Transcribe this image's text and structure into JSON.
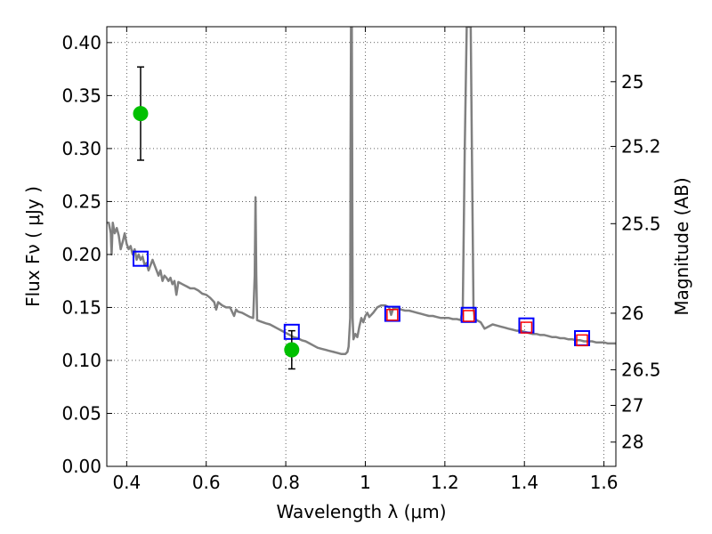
{
  "chart_data": {
    "type": "scatter",
    "xlabel": "Wavelength  λ (μm)",
    "ylabel": "Flux  Fν ( μJy )",
    "y2label": "Magnitude (AB)",
    "xlim": [
      0.35,
      1.63
    ],
    "ylim": [
      0.0,
      0.415
    ],
    "grid": true,
    "x_ticks": [
      0.4,
      0.6,
      0.8,
      1.0,
      1.2,
      1.4,
      1.6
    ],
    "x_tick_labels": [
      "0.4",
      "0.6",
      "0.8",
      "1",
      "1.2",
      "1.4",
      "1.6"
    ],
    "y_ticks": [
      0.0,
      0.05,
      0.1,
      0.15,
      0.2,
      0.25,
      0.3,
      0.35,
      0.4
    ],
    "y_tick_labels": [
      "0.00",
      "0.05",
      "0.10",
      "0.15",
      "0.20",
      "0.25",
      "0.30",
      "0.35",
      "0.40"
    ],
    "mag_ticks": [
      25,
      25.2,
      25.5,
      26,
      26.5,
      27,
      28
    ],
    "mag_tick_labels": [
      "25",
      "25.2",
      "25.5",
      "26",
      "26.5",
      "27",
      "28"
    ],
    "series": [
      {
        "kind": "spectrum",
        "color": "#808080",
        "points": [
          [
            0.35,
            0.23
          ],
          [
            0.355,
            0.23
          ],
          [
            0.36,
            0.22
          ],
          [
            0.362,
            0.2
          ],
          [
            0.365,
            0.23
          ],
          [
            0.37,
            0.22
          ],
          [
            0.375,
            0.225
          ],
          [
            0.38,
            0.218
          ],
          [
            0.385,
            0.205
          ],
          [
            0.39,
            0.212
          ],
          [
            0.395,
            0.22
          ],
          [
            0.4,
            0.21
          ],
          [
            0.405,
            0.205
          ],
          [
            0.41,
            0.208
          ],
          [
            0.415,
            0.2
          ],
          [
            0.42,
            0.205
          ],
          [
            0.425,
            0.195
          ],
          [
            0.43,
            0.2
          ],
          [
            0.435,
            0.195
          ],
          [
            0.44,
            0.198
          ],
          [
            0.445,
            0.19
          ],
          [
            0.45,
            0.192
          ],
          [
            0.455,
            0.185
          ],
          [
            0.46,
            0.19
          ],
          [
            0.465,
            0.195
          ],
          [
            0.47,
            0.19
          ],
          [
            0.475,
            0.185
          ],
          [
            0.48,
            0.18
          ],
          [
            0.485,
            0.185
          ],
          [
            0.49,
            0.175
          ],
          [
            0.495,
            0.18
          ],
          [
            0.5,
            0.178
          ],
          [
            0.505,
            0.175
          ],
          [
            0.51,
            0.178
          ],
          [
            0.515,
            0.172
          ],
          [
            0.52,
            0.175
          ],
          [
            0.525,
            0.162
          ],
          [
            0.53,
            0.174
          ],
          [
            0.54,
            0.172
          ],
          [
            0.55,
            0.17
          ],
          [
            0.56,
            0.168
          ],
          [
            0.57,
            0.168
          ],
          [
            0.58,
            0.166
          ],
          [
            0.59,
            0.163
          ],
          [
            0.6,
            0.162
          ],
          [
            0.61,
            0.159
          ],
          [
            0.62,
            0.155
          ],
          [
            0.625,
            0.148
          ],
          [
            0.63,
            0.155
          ],
          [
            0.64,
            0.152
          ],
          [
            0.65,
            0.15
          ],
          [
            0.66,
            0.15
          ],
          [
            0.67,
            0.142
          ],
          [
            0.675,
            0.148
          ],
          [
            0.68,
            0.146
          ],
          [
            0.69,
            0.145
          ],
          [
            0.7,
            0.143
          ],
          [
            0.71,
            0.141
          ],
          [
            0.718,
            0.14
          ],
          [
            0.722,
            0.18
          ],
          [
            0.724,
            0.254
          ],
          [
            0.726,
            0.18
          ],
          [
            0.728,
            0.138
          ],
          [
            0.735,
            0.137
          ],
          [
            0.75,
            0.135
          ],
          [
            0.76,
            0.134
          ],
          [
            0.77,
            0.132
          ],
          [
            0.78,
            0.13
          ],
          [
            0.79,
            0.128
          ],
          [
            0.8,
            0.126
          ],
          [
            0.81,
            0.124
          ],
          [
            0.82,
            0.122
          ],
          [
            0.83,
            0.121
          ],
          [
            0.84,
            0.119
          ],
          [
            0.85,
            0.118
          ],
          [
            0.86,
            0.116
          ],
          [
            0.87,
            0.114
          ],
          [
            0.88,
            0.112
          ],
          [
            0.89,
            0.111
          ],
          [
            0.9,
            0.11
          ],
          [
            0.91,
            0.109
          ],
          [
            0.92,
            0.108
          ],
          [
            0.93,
            0.107
          ],
          [
            0.94,
            0.106
          ],
          [
            0.95,
            0.106
          ],
          [
            0.955,
            0.108
          ],
          [
            0.958,
            0.113
          ],
          [
            0.962,
            0.14
          ],
          [
            0.963,
            0.3
          ],
          [
            0.964,
            0.415
          ],
          [
            0.966,
            0.415
          ],
          [
            0.967,
            0.3
          ],
          [
            0.968,
            0.14
          ],
          [
            0.97,
            0.12
          ],
          [
            0.975,
            0.125
          ],
          [
            0.98,
            0.122
          ],
          [
            0.985,
            0.132
          ],
          [
            0.99,
            0.14
          ],
          [
            0.995,
            0.136
          ],
          [
            1.0,
            0.142
          ],
          [
            1.005,
            0.145
          ],
          [
            1.01,
            0.141
          ],
          [
            1.02,
            0.145
          ],
          [
            1.03,
            0.15
          ],
          [
            1.04,
            0.152
          ],
          [
            1.05,
            0.152
          ],
          [
            1.06,
            0.15
          ],
          [
            1.065,
            0.143
          ],
          [
            1.07,
            0.149
          ],
          [
            1.08,
            0.15
          ],
          [
            1.09,
            0.148
          ],
          [
            1.1,
            0.147
          ],
          [
            1.11,
            0.147
          ],
          [
            1.12,
            0.146
          ],
          [
            1.13,
            0.145
          ],
          [
            1.14,
            0.144
          ],
          [
            1.15,
            0.143
          ],
          [
            1.16,
            0.142
          ],
          [
            1.17,
            0.142
          ],
          [
            1.18,
            0.141
          ],
          [
            1.19,
            0.14
          ],
          [
            1.2,
            0.14
          ],
          [
            1.21,
            0.14
          ],
          [
            1.22,
            0.139
          ],
          [
            1.23,
            0.139
          ],
          [
            1.24,
            0.138
          ],
          [
            1.245,
            0.15
          ],
          [
            1.25,
            0.3
          ],
          [
            1.255,
            0.415
          ],
          [
            1.265,
            0.415
          ],
          [
            1.268,
            0.3
          ],
          [
            1.272,
            0.15
          ],
          [
            1.275,
            0.14
          ],
          [
            1.28,
            0.138
          ],
          [
            1.29,
            0.136
          ],
          [
            1.3,
            0.13
          ],
          [
            1.31,
            0.132
          ],
          [
            1.32,
            0.134
          ],
          [
            1.33,
            0.133
          ],
          [
            1.34,
            0.132
          ],
          [
            1.35,
            0.131
          ],
          [
            1.36,
            0.13
          ],
          [
            1.37,
            0.129
          ],
          [
            1.38,
            0.128
          ],
          [
            1.39,
            0.128
          ],
          [
            1.4,
            0.127
          ],
          [
            1.41,
            0.126
          ],
          [
            1.42,
            0.125
          ],
          [
            1.43,
            0.125
          ],
          [
            1.44,
            0.124
          ],
          [
            1.45,
            0.124
          ],
          [
            1.46,
            0.123
          ],
          [
            1.47,
            0.122
          ],
          [
            1.48,
            0.122
          ],
          [
            1.49,
            0.121
          ],
          [
            1.5,
            0.121
          ],
          [
            1.51,
            0.12
          ],
          [
            1.52,
            0.12
          ],
          [
            1.53,
            0.119
          ],
          [
            1.54,
            0.119
          ],
          [
            1.55,
            0.118
          ],
          [
            1.56,
            0.118
          ],
          [
            1.57,
            0.118
          ],
          [
            1.58,
            0.117
          ],
          [
            1.59,
            0.117
          ],
          [
            1.6,
            0.117
          ],
          [
            1.61,
            0.116
          ],
          [
            1.62,
            0.116
          ],
          [
            1.63,
            0.116
          ]
        ]
      },
      {
        "kind": "model_photometry",
        "marker": "square",
        "color": "#0000ff",
        "x": [
          0.435,
          0.815,
          1.068,
          1.26,
          1.405,
          1.545
        ],
        "y": [
          0.196,
          0.127,
          0.144,
          0.143,
          0.133,
          0.121
        ]
      },
      {
        "kind": "observed_photometry",
        "marker": "square",
        "color": "#ff0000",
        "x": [
          1.068,
          1.26,
          1.405,
          1.545
        ],
        "y": [
          0.143,
          0.142,
          0.131,
          0.119
        ]
      },
      {
        "kind": "observed_with_errors",
        "marker": "circle",
        "color": "#00c000",
        "x": [
          0.435,
          0.815
        ],
        "y": [
          0.333,
          0.11
        ],
        "err": [
          0.044,
          0.018
        ]
      }
    ]
  }
}
